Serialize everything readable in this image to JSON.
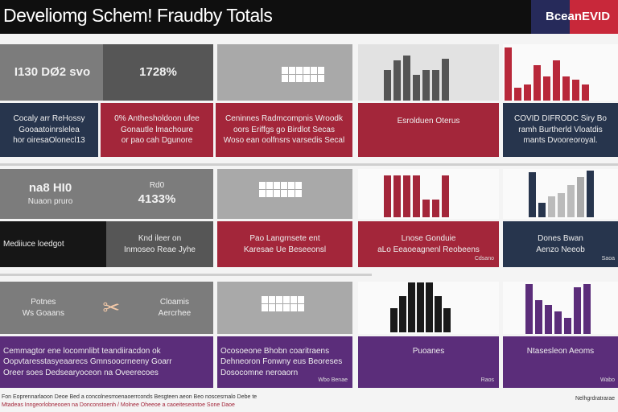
{
  "header": {
    "title": "Develiomg Schem! Fraudby Totals",
    "badge": "BceanEVID"
  },
  "row1": {
    "a_top": "I130  DØ2  svo",
    "b_top": "1728%",
    "a_bottom": [
      "Cocaly arr ReHossy",
      "Gooaatoinrslelea",
      "hor oiresaOlonecl13"
    ],
    "b_bottom": [
      "0% Anthesholdoon ufee",
      "Gonautle lmachoure",
      "or pao cah Dgunore"
    ],
    "c_bottom": [
      "Ceninnes Radmcompnis Wroodk",
      "oors Eriffgs go Birdlot Secas",
      "Woso ean oolfnsrs varsedis Secal"
    ],
    "d_bottom": [
      "Esrolduen Oterus"
    ],
    "e_bottom": [
      "COVID DIFRODC Siry Bo",
      "ramh Burtherld Vloatdis",
      "mants Dvooreoroyal."
    ]
  },
  "row2": {
    "a_top": [
      "na8 HI0",
      "Nuaon pruro"
    ],
    "b_top": [
      "Rd0",
      "4133%"
    ],
    "a_bottom": "Mediiuce loedgot",
    "b_bottom": [
      "Knd ileer on",
      "Inmoseo Reae Jyhe"
    ],
    "c_bottom": [
      "Pao Langrnsete ent",
      "Karesae Ue Beseeonsl"
    ],
    "d_bottom": [
      "Lnose Gonduie",
      "aLo Eeaoeagnenl Reobeens"
    ],
    "d_note": "Cdsano",
    "e_bottom": [
      "Dones Bwan",
      "Aenzo Neeob"
    ],
    "e_note": "Saoa"
  },
  "row3": {
    "a_top": [
      "Potnes",
      "Ws Goaans"
    ],
    "b_top": [
      "Cloamis",
      "Aercrhee"
    ],
    "a_bottom": [
      "Cemmagtor ene locomnlibt teandiiracdon ok",
      "Oopvtaresstasyeaarecs Gmnsoocrneeny Goarr",
      "Oreer soes Dedsearyoceon na Oveerecoes"
    ],
    "c_bottom": [
      "Ocosoeone Bhobn coaritraens",
      "Dehneoron Fonwny eus Beoreses",
      "Dosocomne neroaorn"
    ],
    "c_note": "Wbo Benae",
    "d_bottom": [
      "Puoanes"
    ],
    "d_note": "Raos",
    "e_bottom": [
      "Ntasesleon Aeoms"
    ],
    "e_note": "Wabo"
  },
  "footer": {
    "line1": "Fon Eoprennarlaoon Deoe Bed a concolnesrroenaoerrconds Besgteen aeon Beo noscesrnalo Debe te",
    "line2": "Mtadeas Inngeorlobneooen na Donconstoenh / Molnee Oheeoe a caoeiteseontoe Sone Daoe",
    "right": "Nelhgrdratrarae"
  }
}
